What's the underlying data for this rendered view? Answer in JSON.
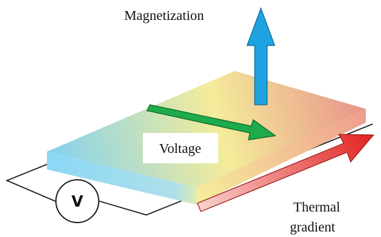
{
  "labels": {
    "magnetization": "Magnetization",
    "voltage": "Voltage",
    "thermal_line1": "Thermal",
    "thermal_line2": "gradient",
    "voltmeter": "V"
  },
  "colors": {
    "magnetization_arrow": "#1ea3e0",
    "voltage_arrow": "#1eab4c",
    "thermal_arrow_hot": "#e32421",
    "thermal_arrow_cold": "#f7d2cf",
    "slab_cold": "#7ed0f2",
    "slab_mid": "#f4ec9a",
    "slab_hot": "#e8938a"
  }
}
